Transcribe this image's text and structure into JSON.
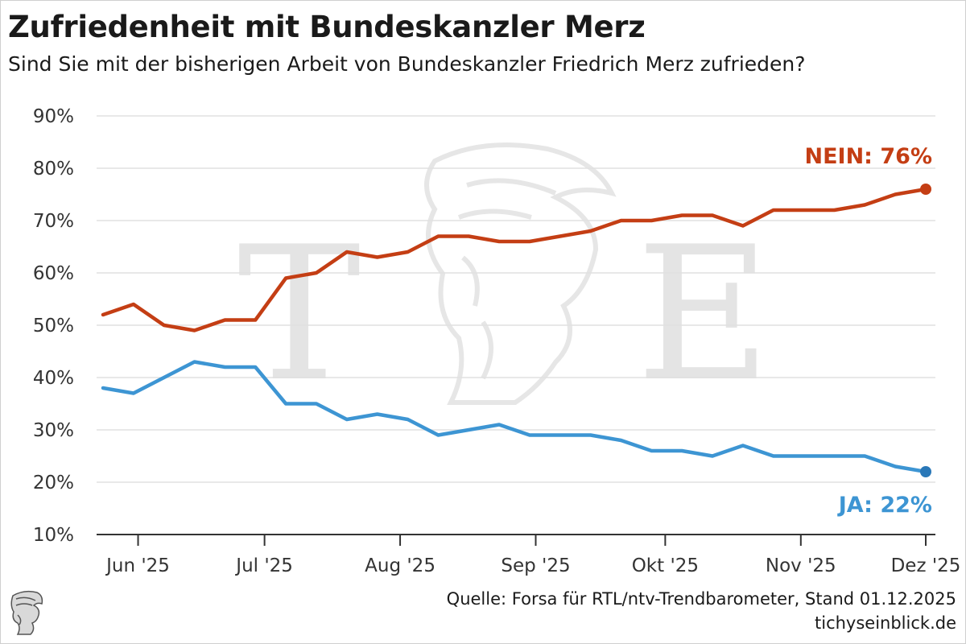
{
  "header": {
    "title": "Zufriedenheit mit Bundeskanzler Merz",
    "subtitle": "Sind Sie mit der bisherigen Arbeit von Bundeskanzler Friedrich Merz zufrieden?"
  },
  "footer": {
    "source": "Quelle: Forsa für RTL/ntv-Trendbarometer, Stand 01.12.2025",
    "site": "tichyseinblick.de"
  },
  "watermark": {
    "left_letter": "T",
    "right_letter": "E"
  },
  "colors": {
    "nein": "#c43e14",
    "ja": "#3d95d3",
    "ja_dot": "#2a78b8",
    "grid": "#e0e0e0",
    "axis": "#333333"
  },
  "chart_data": {
    "type": "line",
    "title": "Zufriedenheit mit Bundeskanzler Merz",
    "xlabel": "",
    "ylabel": "",
    "ylim": [
      10,
      90
    ],
    "yticks": [
      10,
      20,
      30,
      40,
      50,
      60,
      70,
      80,
      90
    ],
    "ytick_labels": [
      "10%",
      "20%",
      "30%",
      "40%",
      "50%",
      "60%",
      "70%",
      "80%",
      "90%"
    ],
    "xlim": [
      0,
      27
    ],
    "x": [
      0,
      1,
      2,
      3,
      4,
      5,
      6,
      7,
      8,
      9,
      10,
      11,
      12,
      13,
      14,
      15,
      16,
      17,
      18,
      19,
      20,
      21,
      22,
      23,
      24,
      25,
      26,
      27
    ],
    "x_ticks": [
      {
        "pos": 1.15,
        "label": "Jun '25"
      },
      {
        "pos": 5.3,
        "label": "Jul '25"
      },
      {
        "pos": 9.75,
        "label": "Aug '25"
      },
      {
        "pos": 14.2,
        "label": "Sep '25"
      },
      {
        "pos": 18.45,
        "label": "Okt '25"
      },
      {
        "pos": 22.9,
        "label": "Nov '25"
      },
      {
        "pos": 27,
        "label": "Dez '25"
      }
    ],
    "series": [
      {
        "name": "NEIN",
        "values": [
          52,
          54,
          50,
          49,
          51,
          51,
          59,
          60,
          64,
          63,
          64,
          67,
          67,
          66,
          66,
          67,
          68,
          70,
          70,
          71,
          71,
          69,
          72,
          72,
          72,
          73,
          75,
          76
        ],
        "end_label": "NEIN: 76%"
      },
      {
        "name": "JA",
        "values": [
          38,
          37,
          40,
          43,
          42,
          42,
          35,
          35,
          32,
          33,
          32,
          29,
          30,
          31,
          29,
          29,
          29,
          28,
          26,
          26,
          25,
          27,
          25,
          25,
          25,
          25,
          23,
          22
        ],
        "end_label": "JA: 22%"
      }
    ]
  }
}
